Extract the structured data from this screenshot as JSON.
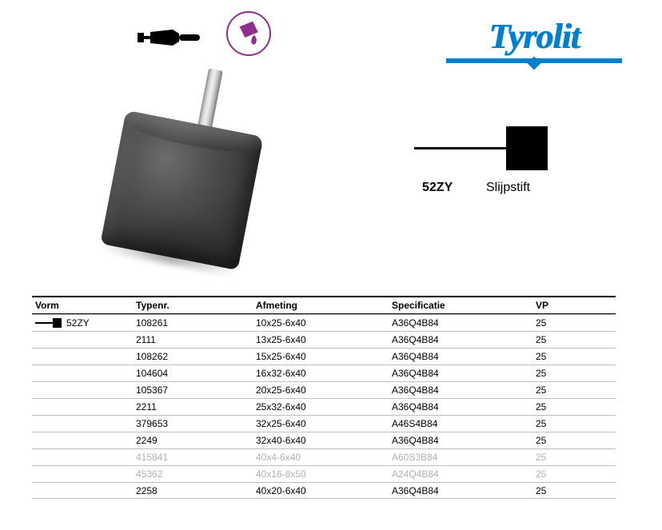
{
  "logo_text": "Tyrolit",
  "schematic": {
    "code": "52ZY",
    "name": "Slijpstift"
  },
  "table": {
    "headers": {
      "vorm": "Vorm",
      "typenr": "Typenr.",
      "afmeting": "Afmeting",
      "specificatie": "Specificatie",
      "vp": "VP"
    },
    "vorm_code": "52ZY",
    "rows": [
      {
        "typenr": "108261",
        "afmeting": "10x25-6x40",
        "spec": "A36Q4B84",
        "vp": "25",
        "faded": false
      },
      {
        "typenr": "2111",
        "afmeting": "13x25-6x40",
        "spec": "A36Q4B84",
        "vp": "25",
        "faded": false
      },
      {
        "typenr": "108262",
        "afmeting": "15x25-6x40",
        "spec": "A36Q4B84",
        "vp": "25",
        "faded": false
      },
      {
        "typenr": "104604",
        "afmeting": "16x32-6x40",
        "spec": "A36Q4B84",
        "vp": "25",
        "faded": false
      },
      {
        "typenr": "105367",
        "afmeting": "20x25-6x40",
        "spec": "A36Q4B84",
        "vp": "25",
        "faded": false
      },
      {
        "typenr": "2211",
        "afmeting": "25x32-6x40",
        "spec": "A36Q4B84",
        "vp": "25",
        "faded": false
      },
      {
        "typenr": "379653",
        "afmeting": "32x25-6x40",
        "spec": "A46S4B84",
        "vp": "25",
        "faded": false
      },
      {
        "typenr": "2249",
        "afmeting": "32x40-6x40",
        "spec": "A36Q4B84",
        "vp": "25",
        "faded": false
      },
      {
        "typenr": "415841",
        "afmeting": "40x4-6x40",
        "spec": "A60S3B84",
        "vp": "25",
        "faded": true
      },
      {
        "typenr": "45362",
        "afmeting": "40x16-8x50",
        "spec": "A24Q4B84",
        "vp": "25",
        "faded": true
      },
      {
        "typenr": "2258",
        "afmeting": "40x20-6x40",
        "spec": "A36Q4B84",
        "vp": "25",
        "faded": false
      }
    ]
  },
  "colors": {
    "brand_blue": "#0080cc",
    "purple": "#8e2f8e",
    "table_border": "#bfbfbf",
    "faded_text": "#b0b0b0"
  }
}
